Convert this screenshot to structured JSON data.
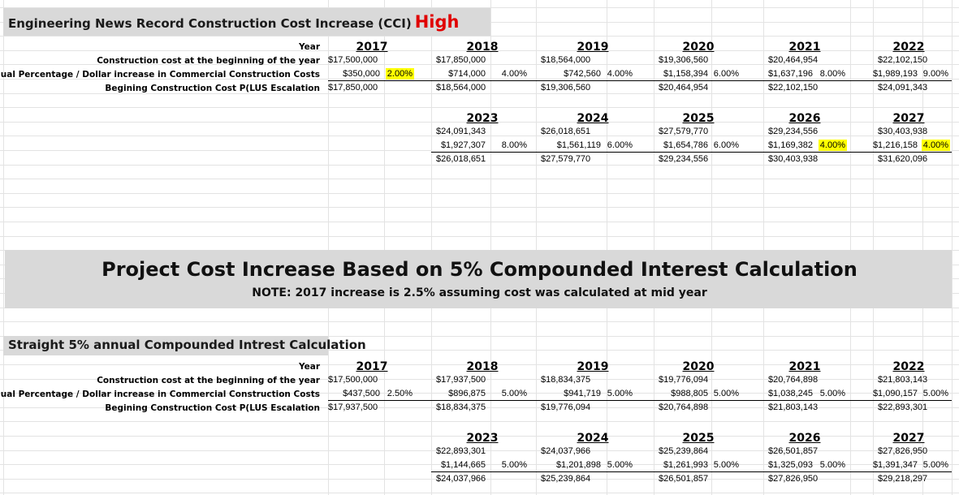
{
  "section1": {
    "title": "Engineering News Record Construction Cost Increase (CCI)",
    "title_highlight": "High",
    "highlight_color": "#e00000",
    "row_labels": [
      "Year",
      "Construction cost at the beginning of the year",
      "Annual Percentage / Dollar increase in Commercial Construction Costs",
      "Begining Construction Cost P(LUS Escalation"
    ],
    "block1": [
      {
        "year": "2017",
        "start": "$17,500,000",
        "increase": "$350,000",
        "pct": "2.00%",
        "end": "$17,850,000",
        "pct_highlight": true
      },
      {
        "year": "2018",
        "start": "$17,850,000",
        "increase": "$714,000",
        "pct": "4.00%",
        "end": "$18,564,000",
        "pct_highlight": false
      },
      {
        "year": "2019",
        "start": "$18,564,000",
        "increase": "$742,560",
        "pct": "4.00%",
        "end": "$19,306,560",
        "pct_highlight": false
      },
      {
        "year": "2020",
        "start": "$19,306,560",
        "increase": "$1,158,394",
        "pct": "6.00%",
        "end": "$20,464,954",
        "pct_highlight": false
      },
      {
        "year": "2021",
        "start": "$20,464,954",
        "increase": "$1,637,196",
        "pct": "8.00%",
        "end": "$22,102,150",
        "pct_highlight": false
      },
      {
        "year": "2022",
        "start": "$22,102,150",
        "increase": "$1,989,193",
        "pct": "9.00%",
        "end": "$24,091,343",
        "pct_highlight": false
      }
    ],
    "block2": [
      {
        "year": "2023",
        "start": "$24,091,343",
        "increase": "$1,927,307",
        "pct": "8.00%",
        "end": "$26,018,651",
        "pct_highlight": false
      },
      {
        "year": "2024",
        "start": "$26,018,651",
        "increase": "$1,561,119",
        "pct": "6.00%",
        "end": "$27,579,770",
        "pct_highlight": false
      },
      {
        "year": "2025",
        "start": "$27,579,770",
        "increase": "$1,654,786",
        "pct": "6.00%",
        "end": "$29,234,556",
        "pct_highlight": false
      },
      {
        "year": "2026",
        "start": "$29,234,556",
        "increase": "$1,169,382",
        "pct": "4.00%",
        "end": "$30,403,938",
        "pct_highlight": true
      },
      {
        "year": "2027",
        "start": "$30,403,938",
        "increase": "$1,216,158",
        "pct": "4.00%",
        "end": "$31,620,096",
        "pct_highlight": true
      }
    ]
  },
  "banner": {
    "title": "Project Cost Increase Based on 5% Compounded Interest Calculation",
    "note": "NOTE: 2017 increase is 2.5% assuming cost was calculated at mid year"
  },
  "section2": {
    "title": "Straight 5% annual Compounded Intrest Calculation",
    "row_labels": [
      "Year",
      "Construction cost at the beginning of the year",
      "Annual Percentage / Dollar increase in Commercial Construction Costs",
      "Begining Construction Cost P(LUS Escalation"
    ],
    "block1": [
      {
        "year": "2017",
        "start": "$17,500,000",
        "increase": "$437,500",
        "pct": "2.50%",
        "end": "$17,937,500",
        "pct_highlight": false
      },
      {
        "year": "2018",
        "start": "$17,937,500",
        "increase": "$896,875",
        "pct": "5.00%",
        "end": "$18,834,375",
        "pct_highlight": false
      },
      {
        "year": "2019",
        "start": "$18,834,375",
        "increase": "$941,719",
        "pct": "5.00%",
        "end": "$19,776,094",
        "pct_highlight": false
      },
      {
        "year": "2020",
        "start": "$19,776,094",
        "increase": "$988,805",
        "pct": "5.00%",
        "end": "$20,764,898",
        "pct_highlight": false
      },
      {
        "year": "2021",
        "start": "$20,764,898",
        "increase": "$1,038,245",
        "pct": "5.00%",
        "end": "$21,803,143",
        "pct_highlight": false
      },
      {
        "year": "2022",
        "start": "$21,803,143",
        "increase": "$1,090,157",
        "pct": "5.00%",
        "end": "$22,893,301",
        "pct_highlight": false
      }
    ],
    "block2": [
      {
        "year": "2023",
        "start": "$22,893,301",
        "increase": "$1,144,665",
        "pct": "5.00%",
        "end": "$24,037,966",
        "pct_highlight": false
      },
      {
        "year": "2024",
        "start": "$24,037,966",
        "increase": "$1,201,898",
        "pct": "5.00%",
        "end": "$25,239,864",
        "pct_highlight": false
      },
      {
        "year": "2025",
        "start": "$25,239,864",
        "increase": "$1,261,993",
        "pct": "5.00%",
        "end": "$26,501,857",
        "pct_highlight": false
      },
      {
        "year": "2026",
        "start": "$26,501,857",
        "increase": "$1,325,093",
        "pct": "5.00%",
        "end": "$27,826,950",
        "pct_highlight": false
      },
      {
        "year": "2027",
        "start": "$27,826,950",
        "increase": "$1,391,347",
        "pct": "5.00%",
        "end": "$29,218,297",
        "pct_highlight": false
      }
    ]
  },
  "colors": {
    "band": "#d9d9d9",
    "highlight": "#ffff00",
    "gridline": "#e3e3e3"
  }
}
